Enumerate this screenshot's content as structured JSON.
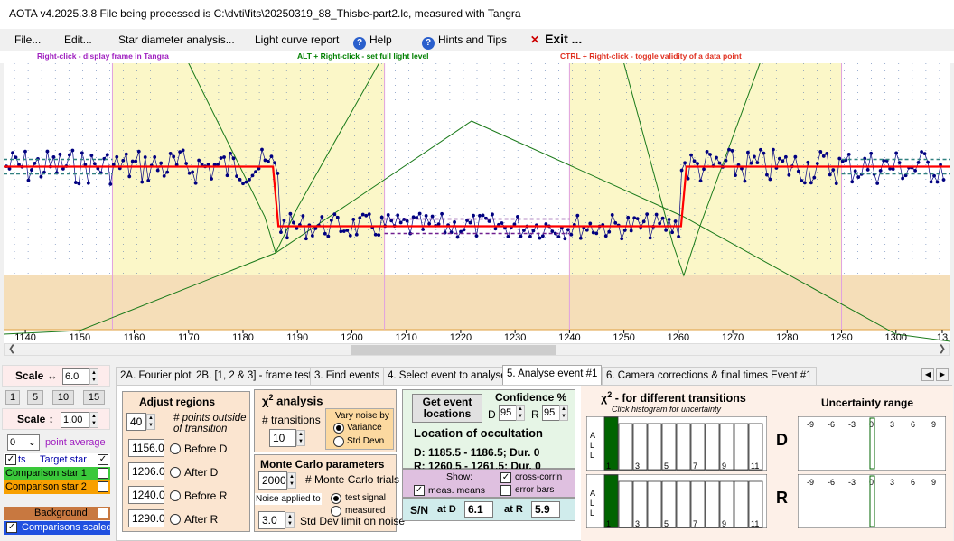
{
  "window": {
    "title": "AOTA v4.2025.3.8    File being processed is C:\\dvti\\fits\\20250319_88_Thisbe-part2.lc, measured with Tangra"
  },
  "menu": {
    "file": "File...",
    "edit": "Edit...",
    "star_diameter": "Star diameter analysis...",
    "light_curve": "Light curve report",
    "help": "Help",
    "hints": "Hints and Tips",
    "exit": "Exit ..."
  },
  "hints": {
    "right_click": "Right-click  -  display frame in Tangra",
    "alt_right_click": "ALT + Right-click  -  set full light level",
    "ctrl_right_click": "CTRL + Right-click  -  toggle validity of a data point"
  },
  "colors": {
    "hint_right": "#a020c0",
    "hint_alt": "#008000",
    "hint_ctrl": "#e03020",
    "plot_band": "#fbf7c8",
    "plot_lower": "#f5deb8",
    "data_points": "#000080",
    "fit_line": "#ff0000",
    "curve": "#1a7a1a",
    "comparison1": "#3ac83a",
    "comparison2": "#f8a000",
    "background": "#c87840",
    "comparisons_scaled": "#2050e0"
  },
  "chart_data": {
    "type": "scatter",
    "x_ticks": [
      1140,
      1150,
      1160,
      1170,
      1180,
      1190,
      1200,
      1210,
      1220,
      1230,
      1240,
      1250,
      1260,
      1270,
      1280,
      1290,
      1300,
      13
    ],
    "xlim": [
      1136,
      1310
    ],
    "baseline_level": 0.05,
    "event_level": -0.55,
    "d_transition": [
      1185.5,
      1186.5
    ],
    "r_transition": [
      1260.5,
      1261.5
    ]
  },
  "left_panel": {
    "scale_h_label": "Scale ↔",
    "scale_h_value": "6.0",
    "scale_buttons": [
      "1",
      "5",
      "10",
      "15"
    ],
    "scale_v_label": "Scale ↕",
    "scale_v_value": "1.00",
    "point_average_value": "0",
    "point_average_label": "point average",
    "pts_label": "ts",
    "target_star": "Target star",
    "comparison1": "Comparison star 1",
    "comparison2": "Comparison star 2",
    "background": "Background",
    "comparisons_scaled": "Comparisons scaled"
  },
  "tabs": [
    "2A. Fourier plot",
    "2B. [1, 2 & 3] - frame test",
    "3. Find events",
    "4. Select event to analyse",
    "5. Analyse event #1",
    "6. Camera corrections & final times Event #1"
  ],
  "adjust": {
    "title": "Adjust regions",
    "points_value": "40",
    "points_label_1": "# points outside",
    "points_label_2": "of transition",
    "before_d_value": "1156.0",
    "before_d_label": "Before D",
    "after_d_value": "1206.0",
    "after_d_label": "After D",
    "before_r_value": "1240.0",
    "before_r_label": "Before R",
    "after_r_value": "1290.0",
    "after_r_label": "After R"
  },
  "chi2": {
    "title": "χ",
    "title_sup": "2",
    "title_rest": " analysis",
    "transitions_label": "# transitions",
    "transitions_value": "10",
    "vary_noise_1": "Vary noise by",
    "variance": "Variance",
    "std_devn": "Std Devn"
  },
  "monte_carlo": {
    "title": "Monte Carlo parameters",
    "trials_value": "2000",
    "trials_label": "# Monte Carlo trials",
    "noise_applied": "Noise applied to",
    "test_signal": "test signal",
    "measured": "measured",
    "std_dev_value": "3.0",
    "std_dev_label": "Std Dev limit on noise"
  },
  "event": {
    "get_locations_1": "Get event",
    "get_locations_2": "locations",
    "confidence_title": "Confidence %",
    "d_label": "D",
    "d_value": "95",
    "r_label": "R",
    "r_value": "95",
    "location_title": "Location of occultation",
    "d_result": "D: 1185.5 - 1186.5; Dur. 0",
    "r_result": "R: 1260.5 - 1261.5; Dur. 0",
    "show_label": "Show:",
    "cross_corr": "cross-corrln",
    "meas_means": "meas. means",
    "error_bars": "error bars",
    "sn_label": "S/N",
    "at_d_label": "at D",
    "at_d_value": "6.1",
    "at_r_label": "at R",
    "at_r_value": "5.9"
  },
  "chi2_hist": {
    "title": "χ",
    "title_sup": "2",
    "title_rest": " - for different transitions",
    "subtitle": "Click histogram for uncertainty",
    "all_label": [
      "A",
      "L",
      "L"
    ],
    "labels": [
      "1",
      "3",
      "5",
      "7",
      "9",
      "11"
    ],
    "d_big": "D",
    "r_big": "R"
  },
  "uncertainty": {
    "title": "Uncertainty range",
    "ticks": [
      "-9",
      "-6",
      "-3",
      "0",
      "3",
      "6",
      "9"
    ]
  }
}
